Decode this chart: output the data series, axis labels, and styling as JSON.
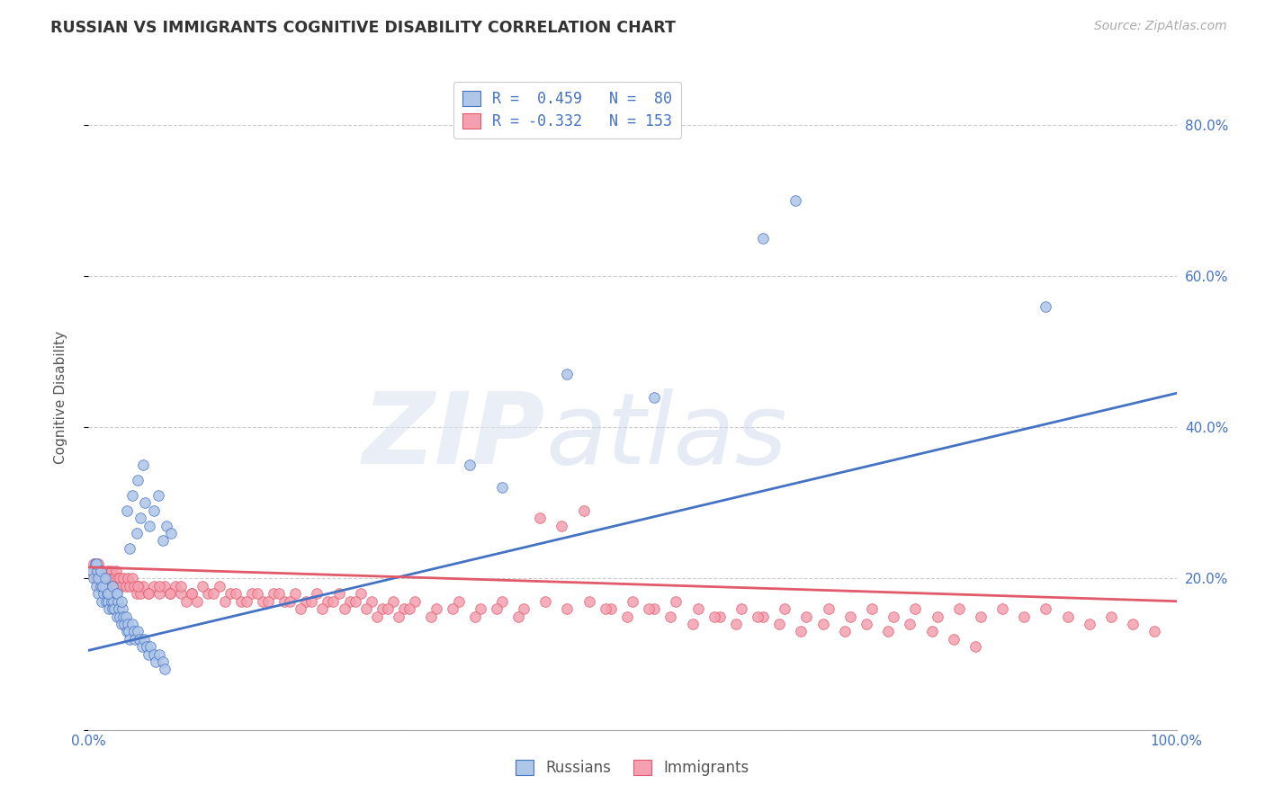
{
  "title": "RUSSIAN VS IMMIGRANTS COGNITIVE DISABILITY CORRELATION CHART",
  "source": "Source: ZipAtlas.com",
  "ylabel": "Cognitive Disability",
  "xlim": [
    0,
    1
  ],
  "ylim": [
    0.0,
    0.88
  ],
  "y_ticks": [
    0.0,
    0.2,
    0.4,
    0.6,
    0.8
  ],
  "y_tick_labels": [
    "",
    "20.0%",
    "40.0%",
    "60.0%",
    "80.0%"
  ],
  "x_tick_labels": [
    "0.0%",
    "100.0%"
  ],
  "background_color": "#ffffff",
  "grid_color": "#cccccc",
  "russians_color": "#aec6e8",
  "immigrants_color": "#f4a0b0",
  "line_russian_color": "#4472c4",
  "line_immigrant_color": "#e05a6a",
  "russian_intercept": 0.105,
  "russian_slope": 0.34,
  "immigrant_intercept": 0.215,
  "immigrant_slope": -0.045,
  "russians_x": [
    0.003,
    0.005,
    0.006,
    0.007,
    0.008,
    0.009,
    0.01,
    0.011,
    0.012,
    0.013,
    0.014,
    0.015,
    0.016,
    0.017,
    0.018,
    0.019,
    0.02,
    0.021,
    0.022,
    0.023,
    0.024,
    0.025,
    0.026,
    0.027,
    0.028,
    0.029,
    0.03,
    0.031,
    0.032,
    0.033,
    0.034,
    0.035,
    0.036,
    0.037,
    0.038,
    0.04,
    0.042,
    0.043,
    0.045,
    0.047,
    0.049,
    0.051,
    0.053,
    0.055,
    0.057,
    0.06,
    0.062,
    0.065,
    0.068,
    0.07,
    0.007,
    0.009,
    0.011,
    0.013,
    0.015,
    0.018,
    0.022,
    0.026,
    0.03,
    0.035,
    0.04,
    0.045,
    0.05,
    0.038,
    0.044,
    0.048,
    0.052,
    0.056,
    0.06,
    0.064,
    0.068,
    0.072,
    0.076,
    0.38,
    0.44,
    0.52,
    0.62,
    0.65,
    0.88,
    0.35
  ],
  "russians_y": [
    0.21,
    0.2,
    0.22,
    0.19,
    0.21,
    0.18,
    0.2,
    0.19,
    0.17,
    0.2,
    0.18,
    0.19,
    0.17,
    0.18,
    0.17,
    0.16,
    0.18,
    0.17,
    0.16,
    0.17,
    0.16,
    0.18,
    0.15,
    0.17,
    0.16,
    0.15,
    0.14,
    0.16,
    0.15,
    0.14,
    0.15,
    0.13,
    0.14,
    0.13,
    0.12,
    0.14,
    0.13,
    0.12,
    0.13,
    0.12,
    0.11,
    0.12,
    0.11,
    0.1,
    0.11,
    0.1,
    0.09,
    0.1,
    0.09,
    0.08,
    0.22,
    0.2,
    0.21,
    0.19,
    0.2,
    0.18,
    0.19,
    0.18,
    0.17,
    0.29,
    0.31,
    0.33,
    0.35,
    0.24,
    0.26,
    0.28,
    0.3,
    0.27,
    0.29,
    0.31,
    0.25,
    0.27,
    0.26,
    0.32,
    0.47,
    0.44,
    0.65,
    0.7,
    0.56,
    0.35
  ],
  "immigrants_x": [
    0.003,
    0.005,
    0.006,
    0.007,
    0.008,
    0.009,
    0.01,
    0.011,
    0.012,
    0.013,
    0.014,
    0.015,
    0.016,
    0.017,
    0.018,
    0.019,
    0.02,
    0.021,
    0.022,
    0.023,
    0.024,
    0.025,
    0.026,
    0.027,
    0.028,
    0.029,
    0.03,
    0.032,
    0.034,
    0.036,
    0.038,
    0.04,
    0.042,
    0.044,
    0.046,
    0.048,
    0.05,
    0.055,
    0.06,
    0.065,
    0.07,
    0.075,
    0.08,
    0.085,
    0.09,
    0.095,
    0.1,
    0.11,
    0.12,
    0.13,
    0.14,
    0.15,
    0.16,
    0.17,
    0.18,
    0.19,
    0.2,
    0.21,
    0.22,
    0.23,
    0.24,
    0.25,
    0.26,
    0.27,
    0.28,
    0.29,
    0.3,
    0.32,
    0.34,
    0.36,
    0.38,
    0.4,
    0.42,
    0.44,
    0.46,
    0.48,
    0.5,
    0.52,
    0.54,
    0.56,
    0.58,
    0.6,
    0.62,
    0.64,
    0.66,
    0.68,
    0.7,
    0.72,
    0.74,
    0.76,
    0.78,
    0.8,
    0.82,
    0.84,
    0.86,
    0.88,
    0.9,
    0.92,
    0.94,
    0.96,
    0.98,
    0.045,
    0.055,
    0.065,
    0.075,
    0.085,
    0.095,
    0.105,
    0.115,
    0.125,
    0.135,
    0.145,
    0.155,
    0.165,
    0.175,
    0.185,
    0.195,
    0.205,
    0.215,
    0.225,
    0.235,
    0.245,
    0.255,
    0.265,
    0.275,
    0.285,
    0.295,
    0.315,
    0.335,
    0.355,
    0.375,
    0.395,
    0.415,
    0.435,
    0.455,
    0.475,
    0.495,
    0.515,
    0.535,
    0.555,
    0.575,
    0.595,
    0.615,
    0.635,
    0.655,
    0.675,
    0.695,
    0.715,
    0.735,
    0.755,
    0.775,
    0.795,
    0.815
  ],
  "immigrants_y": [
    0.21,
    0.22,
    0.2,
    0.21,
    0.2,
    0.22,
    0.2,
    0.21,
    0.19,
    0.2,
    0.21,
    0.2,
    0.19,
    0.2,
    0.21,
    0.19,
    0.2,
    0.21,
    0.2,
    0.19,
    0.2,
    0.21,
    0.19,
    0.2,
    0.19,
    0.2,
    0.19,
    0.2,
    0.19,
    0.2,
    0.19,
    0.2,
    0.19,
    0.18,
    0.19,
    0.18,
    0.19,
    0.18,
    0.19,
    0.18,
    0.19,
    0.18,
    0.19,
    0.18,
    0.17,
    0.18,
    0.17,
    0.18,
    0.19,
    0.18,
    0.17,
    0.18,
    0.17,
    0.18,
    0.17,
    0.18,
    0.17,
    0.18,
    0.17,
    0.18,
    0.17,
    0.18,
    0.17,
    0.16,
    0.17,
    0.16,
    0.17,
    0.16,
    0.17,
    0.16,
    0.17,
    0.16,
    0.17,
    0.16,
    0.17,
    0.16,
    0.17,
    0.16,
    0.17,
    0.16,
    0.15,
    0.16,
    0.15,
    0.16,
    0.15,
    0.16,
    0.15,
    0.16,
    0.15,
    0.16,
    0.15,
    0.16,
    0.15,
    0.16,
    0.15,
    0.16,
    0.15,
    0.14,
    0.15,
    0.14,
    0.13,
    0.19,
    0.18,
    0.19,
    0.18,
    0.19,
    0.18,
    0.19,
    0.18,
    0.17,
    0.18,
    0.17,
    0.18,
    0.17,
    0.18,
    0.17,
    0.16,
    0.17,
    0.16,
    0.17,
    0.16,
    0.17,
    0.16,
    0.15,
    0.16,
    0.15,
    0.16,
    0.15,
    0.16,
    0.15,
    0.16,
    0.15,
    0.28,
    0.27,
    0.29,
    0.16,
    0.15,
    0.16,
    0.15,
    0.14,
    0.15,
    0.14,
    0.15,
    0.14,
    0.13,
    0.14,
    0.13,
    0.14,
    0.13,
    0.14,
    0.13,
    0.12,
    0.11
  ]
}
